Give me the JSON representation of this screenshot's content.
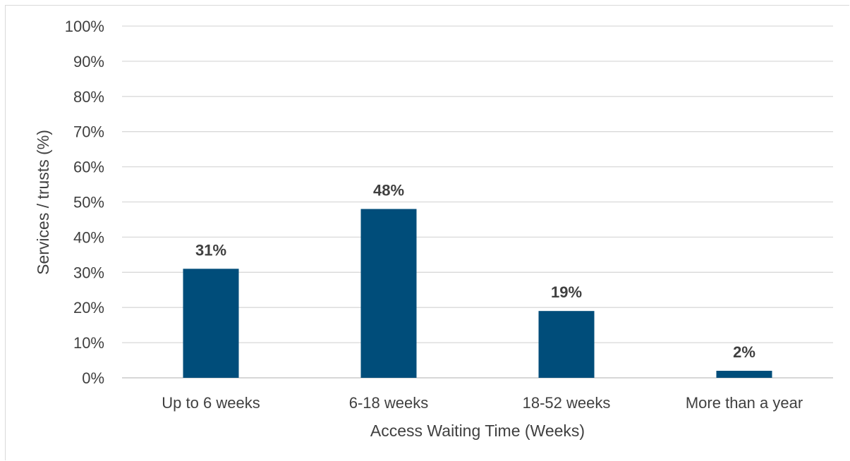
{
  "chart_data": {
    "type": "bar",
    "title": "",
    "xlabel": "Access Waiting Time (Weeks)",
    "ylabel": "Services / trusts (%)",
    "categories": [
      "Up to 6 weeks",
      "6-18 weeks",
      "18-52 weeks",
      "More than a year"
    ],
    "values": [
      31,
      48,
      19,
      2
    ],
    "data_labels": [
      "31%",
      "48%",
      "19%",
      "2%"
    ],
    "ylim": [
      0,
      100
    ],
    "yticks": [
      0,
      10,
      20,
      30,
      40,
      50,
      60,
      70,
      80,
      90,
      100
    ],
    "ytick_labels": [
      "0%",
      "10%",
      "20%",
      "30%",
      "40%",
      "50%",
      "60%",
      "70%",
      "80%",
      "90%",
      "100%"
    ],
    "grid": true,
    "legend": "none",
    "bar_color": "#004d7a",
    "grid_color": "#d9d9d9",
    "text_color": "#404040"
  }
}
